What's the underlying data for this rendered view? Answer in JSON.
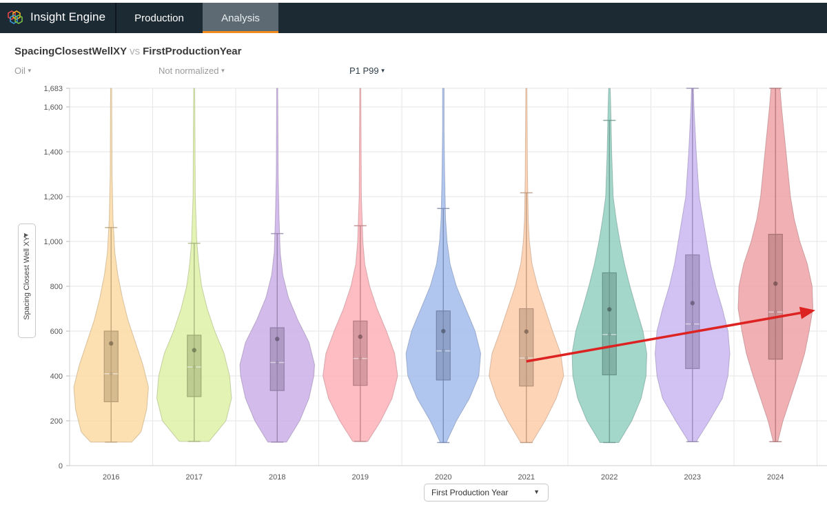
{
  "app": {
    "brand": "Insight Engine",
    "brand_icon": "hexagon-logo-icon"
  },
  "nav": {
    "tabs": [
      {
        "label": "Production",
        "active": false
      },
      {
        "label": "Analysis",
        "active": true
      }
    ]
  },
  "header": {
    "y_variable": "SpacingClosestWellXY",
    "vs": "vs",
    "x_variable": "FirstProductionYear"
  },
  "controls": {
    "fluid": "Oil",
    "normalization": "Not normalized",
    "percentile_range": "P1 P99"
  },
  "axis_controls": {
    "y_label": "Spacing Closest Well XY",
    "x_label": "First Production Year"
  },
  "chart_data": {
    "type": "violin",
    "categories": [
      "2016",
      "2017",
      "2018",
      "2019",
      "2020",
      "2021",
      "2022",
      "2023",
      "2024"
    ],
    "y_range": [
      0,
      1683
    ],
    "y_ticks": [
      0,
      200,
      400,
      600,
      800,
      1000,
      1200,
      1400,
      1600,
      1683
    ],
    "y_tick_labels": [
      "0",
      "200",
      "400",
      "600",
      "800",
      "1,000",
      "1,200",
      "1,400",
      "1,600",
      "1,683"
    ],
    "grid": true,
    "series": [
      {
        "name": "2016",
        "color": "#fdd9a0",
        "min": 105,
        "q1": 285,
        "median": 410,
        "q3": 600,
        "upper_whisker": 1062,
        "mean": 545,
        "max": 1683,
        "density": [
          [
            105,
            0.55
          ],
          [
            150,
            0.8
          ],
          [
            250,
            0.95
          ],
          [
            350,
            1.0
          ],
          [
            450,
            0.85
          ],
          [
            550,
            0.65
          ],
          [
            650,
            0.45
          ],
          [
            750,
            0.3
          ],
          [
            850,
            0.18
          ],
          [
            950,
            0.1
          ],
          [
            1100,
            0.05
          ],
          [
            1300,
            0.025
          ],
          [
            1683,
            0.015
          ]
        ]
      },
      {
        "name": "2017",
        "color": "#ddf0a3",
        "min": 108,
        "q1": 308,
        "median": 440,
        "q3": 582,
        "upper_whisker": 992,
        "mean": 515,
        "max": 1683,
        "density": [
          [
            108,
            0.4
          ],
          [
            200,
            0.85
          ],
          [
            300,
            1.0
          ],
          [
            400,
            0.95
          ],
          [
            500,
            0.8
          ],
          [
            600,
            0.55
          ],
          [
            700,
            0.35
          ],
          [
            800,
            0.2
          ],
          [
            900,
            0.12
          ],
          [
            1000,
            0.07
          ],
          [
            1200,
            0.03
          ],
          [
            1683,
            0.015
          ]
        ]
      },
      {
        "name": "2018",
        "color": "#c9ade6",
        "min": 105,
        "q1": 335,
        "median": 460,
        "q3": 615,
        "upper_whisker": 1035,
        "mean": 565,
        "max": 1683,
        "density": [
          [
            105,
            0.25
          ],
          [
            200,
            0.6
          ],
          [
            300,
            0.85
          ],
          [
            400,
            0.98
          ],
          [
            450,
            1.0
          ],
          [
            550,
            0.85
          ],
          [
            650,
            0.55
          ],
          [
            750,
            0.3
          ],
          [
            850,
            0.15
          ],
          [
            950,
            0.08
          ],
          [
            1100,
            0.05
          ],
          [
            1300,
            0.025
          ],
          [
            1683,
            0.015
          ]
        ]
      },
      {
        "name": "2019",
        "color": "#fdafb6",
        "min": 108,
        "q1": 358,
        "median": 478,
        "q3": 645,
        "upper_whisker": 1070,
        "mean": 575,
        "max": 1683,
        "density": [
          [
            108,
            0.2
          ],
          [
            200,
            0.55
          ],
          [
            300,
            0.85
          ],
          [
            400,
            1.0
          ],
          [
            500,
            0.92
          ],
          [
            600,
            0.7
          ],
          [
            700,
            0.45
          ],
          [
            800,
            0.25
          ],
          [
            900,
            0.12
          ],
          [
            1000,
            0.07
          ],
          [
            1200,
            0.03
          ],
          [
            1683,
            0.015
          ]
        ]
      },
      {
        "name": "2020",
        "color": "#a0b9ec",
        "min": 103,
        "q1": 382,
        "median": 512,
        "q3": 690,
        "upper_whisker": 1147,
        "mean": 600,
        "max": 1683,
        "density": [
          [
            103,
            0.08
          ],
          [
            200,
            0.35
          ],
          [
            300,
            0.7
          ],
          [
            400,
            0.95
          ],
          [
            500,
            1.0
          ],
          [
            600,
            0.85
          ],
          [
            700,
            0.6
          ],
          [
            800,
            0.35
          ],
          [
            900,
            0.18
          ],
          [
            1000,
            0.1
          ],
          [
            1100,
            0.06
          ],
          [
            1300,
            0.035
          ],
          [
            1500,
            0.02
          ],
          [
            1683,
            0.02
          ]
        ]
      },
      {
        "name": "2021",
        "color": "#fdcba6",
        "min": 103,
        "q1": 355,
        "median": 480,
        "q3": 700,
        "upper_whisker": 1217,
        "mean": 598,
        "max": 1683,
        "density": [
          [
            103,
            0.15
          ],
          [
            200,
            0.5
          ],
          [
            300,
            0.8
          ],
          [
            400,
            1.0
          ],
          [
            500,
            0.92
          ],
          [
            600,
            0.7
          ],
          [
            700,
            0.5
          ],
          [
            800,
            0.3
          ],
          [
            900,
            0.15
          ],
          [
            1000,
            0.08
          ],
          [
            1100,
            0.05
          ],
          [
            1300,
            0.03
          ],
          [
            1683,
            0.015
          ]
        ]
      },
      {
        "name": "2022",
        "color": "#8fcebe",
        "min": 103,
        "q1": 405,
        "median": 585,
        "q3": 860,
        "upper_whisker": 1540,
        "mean": 697,
        "max": 1683,
        "density": [
          [
            103,
            0.25
          ],
          [
            200,
            0.6
          ],
          [
            300,
            0.85
          ],
          [
            400,
            0.98
          ],
          [
            500,
            1.0
          ],
          [
            600,
            0.9
          ],
          [
            700,
            0.72
          ],
          [
            800,
            0.55
          ],
          [
            900,
            0.4
          ],
          [
            1000,
            0.28
          ],
          [
            1100,
            0.18
          ],
          [
            1200,
            0.1
          ],
          [
            1400,
            0.06
          ],
          [
            1600,
            0.035
          ],
          [
            1683,
            0.02
          ]
        ]
      },
      {
        "name": "2023",
        "color": "#c7b4f0",
        "min": 107,
        "q1": 433,
        "median": 632,
        "q3": 940,
        "upper_whisker": 1683,
        "mean": 725,
        "max": 1683,
        "density": [
          [
            107,
            0.1
          ],
          [
            200,
            0.45
          ],
          [
            300,
            0.8
          ],
          [
            400,
            0.95
          ],
          [
            500,
            1.0
          ],
          [
            600,
            0.95
          ],
          [
            700,
            0.8
          ],
          [
            800,
            0.62
          ],
          [
            900,
            0.48
          ],
          [
            1000,
            0.38
          ],
          [
            1100,
            0.28
          ],
          [
            1200,
            0.18
          ],
          [
            1400,
            0.1
          ],
          [
            1600,
            0.04
          ],
          [
            1683,
            0.025
          ]
        ]
      },
      {
        "name": "2024",
        "color": "#eea0a4",
        "min": 107,
        "q1": 475,
        "median": 685,
        "q3": 1032,
        "upper_whisker": 1683,
        "mean": 812,
        "max": 1683,
        "density": [
          [
            107,
            0.06
          ],
          [
            200,
            0.2
          ],
          [
            300,
            0.4
          ],
          [
            400,
            0.6
          ],
          [
            500,
            0.78
          ],
          [
            600,
            0.9
          ],
          [
            700,
            1.0
          ],
          [
            800,
            0.98
          ],
          [
            900,
            0.85
          ],
          [
            1000,
            0.65
          ],
          [
            1100,
            0.5
          ],
          [
            1200,
            0.4
          ],
          [
            1400,
            0.28
          ],
          [
            1600,
            0.16
          ],
          [
            1683,
            0.12
          ]
        ]
      }
    ],
    "annotation": {
      "type": "arrow",
      "color": "#dd2222",
      "from": {
        "category": "2021",
        "value": 465
      },
      "to": {
        "category": "2024",
        "value": 693
      }
    }
  }
}
